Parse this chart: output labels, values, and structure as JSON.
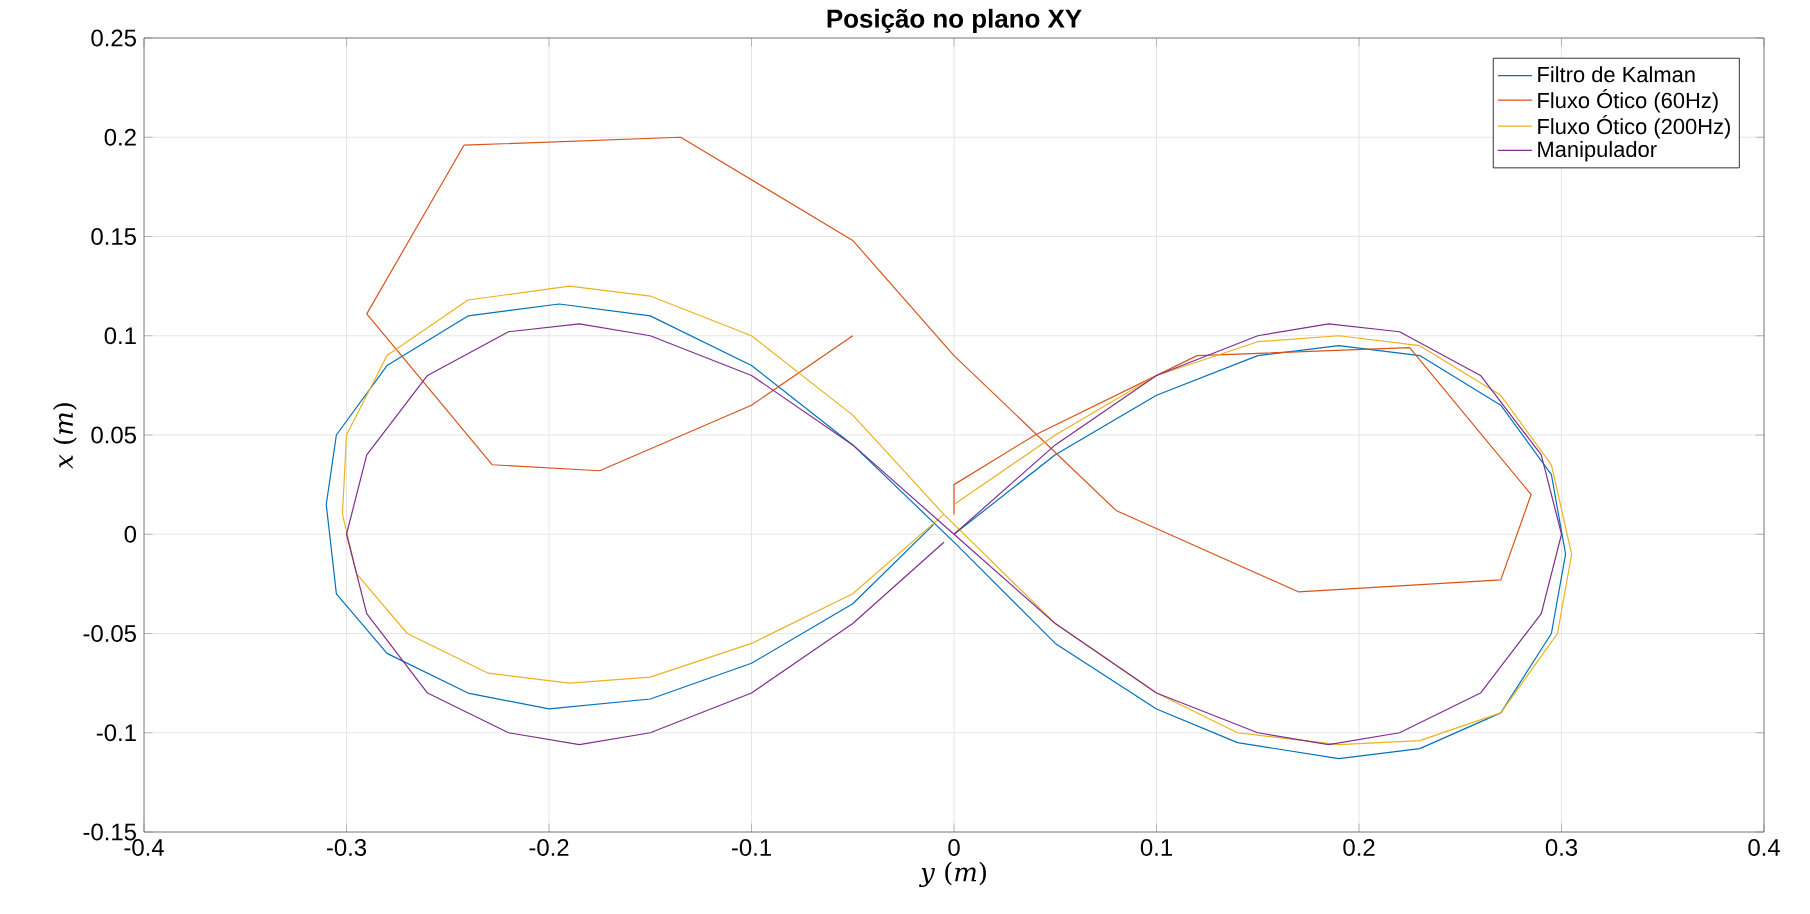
{
  "chart_data": {
    "type": "line",
    "title": "Posição no plano XY",
    "xlabel": "*y* (*m*)",
    "ylabel": "*x* (*m*)",
    "xlim": [
      -0.4,
      0.4
    ],
    "ylim": [
      -0.15,
      0.25
    ],
    "xticks": [
      -0.4,
      -0.3,
      -0.2,
      -0.1,
      0,
      0.1,
      0.2,
      0.3,
      0.4
    ],
    "yticks": [
      -0.15,
      -0.1,
      -0.05,
      0,
      0.05,
      0.1,
      0.15,
      0.2,
      0.25
    ],
    "grid": true,
    "legend": "top right",
    "series": [
      {
        "name": "Filtro de Kalman",
        "color": "#0072bd",
        "x": [
          0,
          0.05,
          0.1,
          0.15,
          0.19,
          0.23,
          0.27,
          0.295,
          0.302,
          0.295,
          0.27,
          0.23,
          0.19,
          0.14,
          0.1,
          0.05,
          0,
          -0.05,
          -0.1,
          -0.15,
          -0.195,
          -0.24,
          -0.28,
          -0.305,
          -0.31,
          -0.305,
          -0.28,
          -0.24,
          -0.2,
          -0.15,
          -0.1,
          -0.05,
          -0.01
        ],
        "values": [
          0,
          0.04,
          0.07,
          0.09,
          0.095,
          0.09,
          0.065,
          0.03,
          -0.01,
          -0.05,
          -0.09,
          -0.108,
          -0.113,
          -0.105,
          -0.088,
          -0.055,
          -0.004,
          0.045,
          0.085,
          0.11,
          0.116,
          0.11,
          0.085,
          0.05,
          0.015,
          -0.03,
          -0.06,
          -0.08,
          -0.088,
          -0.083,
          -0.065,
          -0.035,
          0.005
        ]
      },
      {
        "name": "Fluxo Ótico (60Hz)",
        "color": "#d95319",
        "x": [
          -0.05,
          -0.1,
          -0.175,
          -0.228,
          -0.29,
          -0.242,
          -0.135,
          -0.05,
          0,
          0.08,
          0.17,
          0.27,
          0.285,
          0.225,
          0.12,
          0.04,
          0,
          0
        ],
        "values": [
          0.1,
          0.065,
          0.032,
          0.035,
          0.111,
          0.196,
          0.2,
          0.148,
          0.09,
          0.012,
          -0.029,
          -0.023,
          0.02,
          0.094,
          0.09,
          0.05,
          0.025,
          0.01
        ]
      },
      {
        "name": "Fluxo Ótico (200Hz)",
        "color": "#edb120",
        "x": [
          0,
          0.05,
          0.1,
          0.15,
          0.19,
          0.23,
          0.27,
          0.295,
          0.305,
          0.298,
          0.27,
          0.23,
          0.19,
          0.14,
          0.1,
          0.05,
          -0.005,
          -0.05,
          -0.1,
          -0.15,
          -0.19,
          -0.24,
          -0.28,
          -0.3,
          -0.302,
          -0.295,
          -0.27,
          -0.23,
          -0.19,
          -0.15,
          -0.1,
          -0.05,
          -0.005
        ],
        "values": [
          0.015,
          0.05,
          0.08,
          0.097,
          0.1,
          0.095,
          0.07,
          0.035,
          -0.01,
          -0.05,
          -0.09,
          -0.104,
          -0.106,
          -0.1,
          -0.08,
          -0.045,
          0.01,
          0.06,
          0.1,
          0.12,
          0.125,
          0.118,
          0.09,
          0.05,
          0.01,
          -0.02,
          -0.05,
          -0.07,
          -0.075,
          -0.072,
          -0.055,
          -0.03,
          0.01
        ]
      },
      {
        "name": "Manipulador",
        "color": "#7e2f8e",
        "x": [
          0,
          0.05,
          0.1,
          0.15,
          0.185,
          0.22,
          0.26,
          0.29,
          0.3,
          0.29,
          0.26,
          0.22,
          0.185,
          0.15,
          0.1,
          0.05,
          0,
          -0.05,
          -0.1,
          -0.15,
          -0.185,
          -0.22,
          -0.26,
          -0.29,
          -0.3,
          -0.29,
          -0.26,
          -0.22,
          -0.185,
          -0.15,
          -0.1,
          -0.05,
          -0.005
        ],
        "values": [
          0,
          0.045,
          0.08,
          0.1,
          0.106,
          0.102,
          0.08,
          0.04,
          0,
          -0.04,
          -0.08,
          -0.1,
          -0.106,
          -0.1,
          -0.08,
          -0.045,
          0,
          0.045,
          0.08,
          0.1,
          0.106,
          0.102,
          0.08,
          0.04,
          0,
          -0.04,
          -0.08,
          -0.1,
          -0.106,
          -0.1,
          -0.08,
          -0.045,
          -0.004
        ]
      }
    ]
  }
}
